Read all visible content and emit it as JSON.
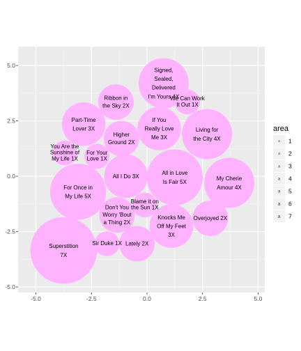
{
  "chart_data": {
    "type": "scatter",
    "title": "",
    "xlabel": "",
    "ylabel": "",
    "xlim": [
      -5.8,
      5.3
    ],
    "ylim": [
      -5.25,
      5.85
    ],
    "x_ticks": [
      -5.0,
      -2.5,
      0.0,
      2.5,
      5.0
    ],
    "y_ticks": [
      -5.0,
      -2.5,
      0.0,
      2.5,
      5.0
    ],
    "x_tick_labels": [
      "-5.0",
      "-2.5",
      "0.0",
      "2.5",
      "5.0"
    ],
    "y_tick_labels": [
      "-5.0",
      "-2.5",
      "0.0",
      "2.5",
      "5.0"
    ],
    "grid": true,
    "panel_color": "#ebebeb",
    "bubble_color": "#ffb3ff",
    "legend": {
      "title": "area",
      "position": "right",
      "keys": [
        "1",
        "2",
        "3",
        "4",
        "5",
        "6",
        "7"
      ],
      "key_symbol": "a"
    },
    "points": [
      {
        "label": [
          "Signed,",
          "Sealed,",
          "Delivered",
          "I'm Yours 4X"
        ],
        "x": 0.75,
        "y": 4.2,
        "area": 4,
        "r": 1.13
      },
      {
        "label": [
          "We Can Work",
          "It Out 1X"
        ],
        "x": 1.82,
        "y": 3.35,
        "area": 1,
        "r": 0.56
      },
      {
        "label": [
          "Ribbon in",
          "the Sky 2X"
        ],
        "x": -1.4,
        "y": 3.35,
        "area": 2,
        "r": 0.8
      },
      {
        "label": [
          "Part-Time",
          "Lover 3X"
        ],
        "x": -2.85,
        "y": 2.35,
        "area": 3,
        "r": 0.98
      },
      {
        "label": [
          "If You",
          "Really Love",
          "Me 3X"
        ],
        "x": 0.55,
        "y": 2.15,
        "area": 3,
        "r": 0.98
      },
      {
        "label": [
          "Living for",
          "the City 4X"
        ],
        "x": 2.7,
        "y": 1.9,
        "area": 4,
        "r": 1.13
      },
      {
        "label": [
          "Higher",
          "Ground 2X"
        ],
        "x": -1.15,
        "y": 1.7,
        "area": 2,
        "r": 0.8
      },
      {
        "label": [
          "You Are the",
          "Sunshine of",
          "My Life 1X"
        ],
        "x": -3.7,
        "y": 1.05,
        "area": 1,
        "r": 0.56
      },
      {
        "label": [
          "For Your",
          "Love 1X"
        ],
        "x": -2.25,
        "y": 0.9,
        "area": 1,
        "r": 0.56
      },
      {
        "label": [
          "All I Do 3X"
        ],
        "x": -0.95,
        "y": 0.0,
        "area": 3,
        "r": 0.98
      },
      {
        "label": [
          "All in Love",
          "Is Fair 5X"
        ],
        "x": 1.25,
        "y": -0.05,
        "area": 5,
        "r": 1.26
      },
      {
        "label": [
          "My Cherie",
          "Amour 4X"
        ],
        "x": 3.7,
        "y": -0.3,
        "area": 4,
        "r": 1.13
      },
      {
        "label": [
          "For Once in",
          "My Life 5X"
        ],
        "x": -3.1,
        "y": -0.7,
        "area": 5,
        "r": 1.26
      },
      {
        "label": [
          "Blame it on",
          "the Sun 1X"
        ],
        "x": -0.1,
        "y": -1.3,
        "area": 1,
        "r": 0.56
      },
      {
        "label": [
          "Don't You",
          "Worry 'Bout",
          "a Thing 2X"
        ],
        "x": -1.35,
        "y": -1.75,
        "area": 2,
        "r": 0.8
      },
      {
        "label": [
          "Overjoyed 2X"
        ],
        "x": 2.85,
        "y": -1.9,
        "area": 2,
        "r": 0.8
      },
      {
        "label": [
          "Knocks Me",
          "Off My Feet",
          "3X"
        ],
        "x": 1.1,
        "y": -2.25,
        "area": 3,
        "r": 0.98
      },
      {
        "label": [
          "Sir Duke 1X"
        ],
        "x": -1.8,
        "y": -3.05,
        "area": 1,
        "r": 0.56
      },
      {
        "label": [
          "Lately 2X"
        ],
        "x": -0.45,
        "y": -3.05,
        "area": 2,
        "r": 0.8
      },
      {
        "label": [
          "Superstition",
          "7X"
        ],
        "x": -3.75,
        "y": -3.35,
        "area": 7,
        "r": 1.5
      }
    ]
  }
}
